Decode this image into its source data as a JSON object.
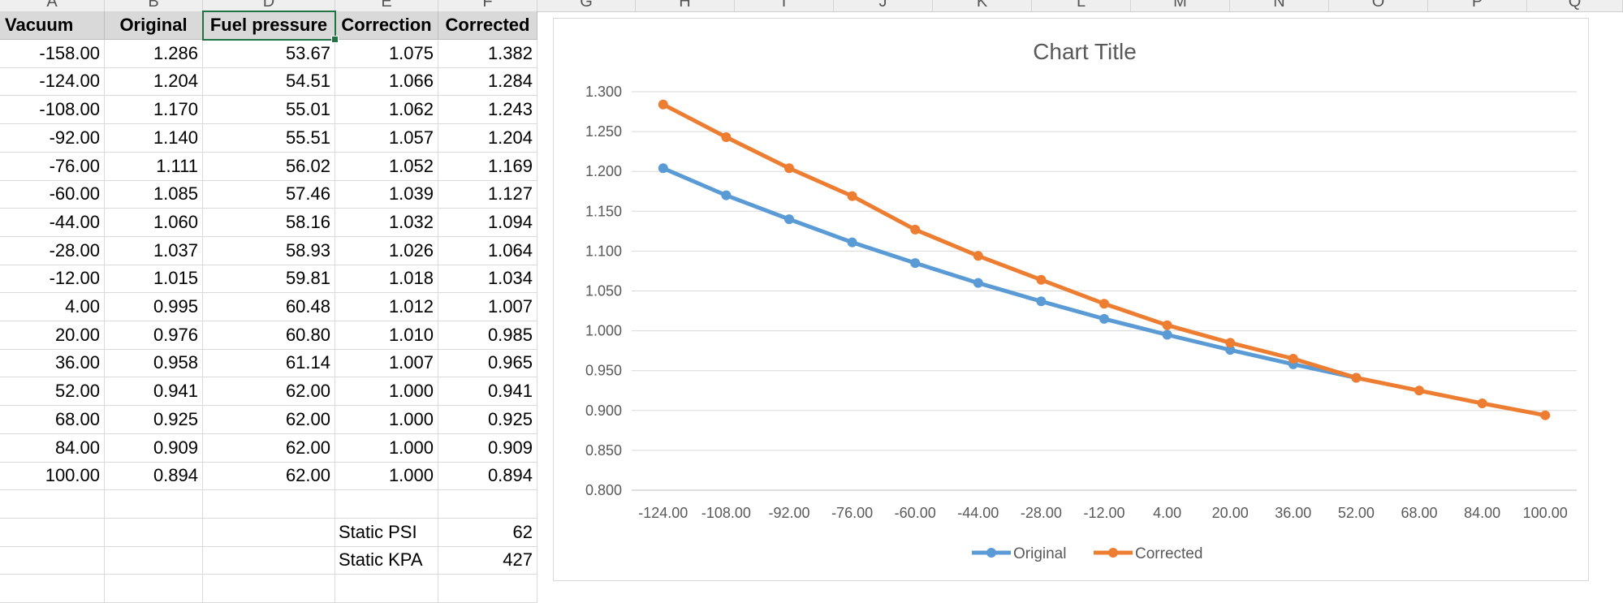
{
  "sheet": {
    "column_letters": [
      "A",
      "B",
      "D",
      "E",
      "F",
      "G",
      "H",
      "I",
      "J",
      "K",
      "L",
      "M",
      "N",
      "O",
      "P",
      "Q"
    ],
    "headers": [
      "Vacuum",
      "Original",
      "Fuel pressure",
      "Correction",
      "Corrected"
    ],
    "rows": [
      [
        "-158.00",
        "1.286",
        "53.67",
        "1.075",
        "1.382"
      ],
      [
        "-124.00",
        "1.204",
        "54.51",
        "1.066",
        "1.284"
      ],
      [
        "-108.00",
        "1.170",
        "55.01",
        "1.062",
        "1.243"
      ],
      [
        "-92.00",
        "1.140",
        "55.51",
        "1.057",
        "1.204"
      ],
      [
        "-76.00",
        "1.111",
        "56.02",
        "1.052",
        "1.169"
      ],
      [
        "-60.00",
        "1.085",
        "57.46",
        "1.039",
        "1.127"
      ],
      [
        "-44.00",
        "1.060",
        "58.16",
        "1.032",
        "1.094"
      ],
      [
        "-28.00",
        "1.037",
        "58.93",
        "1.026",
        "1.064"
      ],
      [
        "-12.00",
        "1.015",
        "59.81",
        "1.018",
        "1.034"
      ],
      [
        "4.00",
        "0.995",
        "60.48",
        "1.012",
        "1.007"
      ],
      [
        "20.00",
        "0.976",
        "60.80",
        "1.010",
        "0.985"
      ],
      [
        "36.00",
        "0.958",
        "61.14",
        "1.007",
        "0.965"
      ],
      [
        "52.00",
        "0.941",
        "62.00",
        "1.000",
        "0.941"
      ],
      [
        "68.00",
        "0.925",
        "62.00",
        "1.000",
        "0.925"
      ],
      [
        "84.00",
        "0.909",
        "62.00",
        "1.000",
        "0.909"
      ],
      [
        "100.00",
        "0.894",
        "62.00",
        "1.000",
        "0.894"
      ]
    ],
    "static_psi": {
      "label": "Static PSI",
      "value": "62"
    },
    "static_kpa": {
      "label": "Static KPA",
      "value": "427"
    }
  },
  "chart_data": {
    "type": "line",
    "title": "Chart Title",
    "categories": [
      "-124.00",
      "-108.00",
      "-92.00",
      "-76.00",
      "-60.00",
      "-44.00",
      "-28.00",
      "-12.00",
      "4.00",
      "20.00",
      "36.00",
      "52.00",
      "68.00",
      "84.00",
      "100.00"
    ],
    "series": [
      {
        "name": "Original",
        "color": "#5b9bd5",
        "values": [
          1.204,
          1.17,
          1.14,
          1.111,
          1.085,
          1.06,
          1.037,
          1.015,
          0.995,
          0.976,
          0.958,
          0.941,
          null,
          null,
          null
        ]
      },
      {
        "name": "Corrected",
        "color": "#ed7d31",
        "values": [
          1.284,
          1.243,
          1.204,
          1.169,
          1.127,
          1.094,
          1.064,
          1.034,
          1.007,
          0.985,
          0.965,
          0.941,
          0.925,
          0.909,
          0.894
        ]
      }
    ],
    "ylim": [
      0.8,
      1.3
    ],
    "yticks": [
      "0.800",
      "0.850",
      "0.900",
      "0.950",
      "1.000",
      "1.050",
      "1.100",
      "1.150",
      "1.200",
      "1.250",
      "1.300"
    ],
    "grid": true,
    "legend_position": "bottom"
  }
}
